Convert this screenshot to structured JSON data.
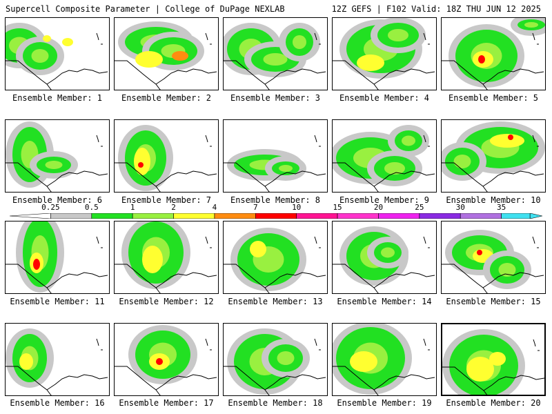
{
  "header": {
    "title": "Supercell Composite Parameter | College of DuPage NEXLAB",
    "run_info": "12Z GEFS | F102 Valid: 18Z THU JUN 12 2025"
  },
  "colorbar": {
    "labels": [
      "0.25",
      "0.5",
      "1",
      "2",
      "4",
      "7",
      "10",
      "15",
      "20",
      "25",
      "30",
      "35"
    ],
    "colors": [
      "#c8c8c8",
      "#22e022",
      "#99f040",
      "#ffff30",
      "#ff8c10",
      "#ff0000",
      "#ff1493",
      "#ff33cc",
      "#ee22ee",
      "#8a2be2",
      "#b070e0",
      "#40e0f0"
    ]
  },
  "members": [
    {
      "label": "Ensemble Member: 1"
    },
    {
      "label": "Ensemble Member: 2"
    },
    {
      "label": "Ensemble Member: 3"
    },
    {
      "label": "Ensemble Member: 4"
    },
    {
      "label": "Ensemble Member: 5"
    },
    {
      "label": "Ensemble Member: 6"
    },
    {
      "label": "Ensemble Member: 7"
    },
    {
      "label": "Ensemble Member: 8"
    },
    {
      "label": "Ensemble Member: 9"
    },
    {
      "label": "Ensemble Member: 10"
    },
    {
      "label": "Ensemble Member: 11"
    },
    {
      "label": "Ensemble Member: 12"
    },
    {
      "label": "Ensemble Member: 13"
    },
    {
      "label": "Ensemble Member: 14"
    },
    {
      "label": "Ensemble Member: 15"
    },
    {
      "label": "Ensemble Member: 16"
    },
    {
      "label": "Ensemble Member: 17"
    },
    {
      "label": "Ensemble Member: 18"
    },
    {
      "label": "Ensemble Member: 19"
    },
    {
      "label": "Ensemble Member: 20"
    }
  ]
}
